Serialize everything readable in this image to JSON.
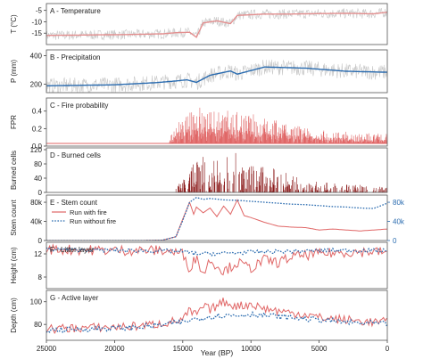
{
  "chart_data": {
    "type": "line",
    "x_axis": {
      "label": "Year (BP)",
      "range": [
        25000,
        0
      ],
      "reversed": true,
      "ticks": [
        25000,
        20000,
        15000,
        10000,
        5000,
        0
      ],
      "tick_labels": [
        "25000",
        "20000",
        "15000",
        "10000",
        "5000",
        "0"
      ]
    },
    "panels": [
      {
        "id": "A",
        "label": "A - Temperature",
        "ylabel": "T (°C)",
        "type": "line",
        "ylim": [
          -20,
          -2
        ],
        "yticks": [
          -15,
          -10,
          -5
        ],
        "series": [
          {
            "name": "Temperature (annual)",
            "role": "noise",
            "color": "#c9c9c9",
            "x": [
              25000,
              22000,
              19000,
              16500,
              15500,
              14500,
              14000,
              13500,
              12500,
              11500,
              11000,
              9000,
              7000,
              5000,
              3000,
              1000,
              0
            ],
            "y": [
              -16,
              -15.8,
              -15.6,
              -15.3,
              -14.8,
              -14.6,
              -16.8,
              -10.5,
              -9.6,
              -10.8,
              -7.2,
              -6.6,
              -6.6,
              -6.4,
              -6.3,
              -6.5,
              -5.8
            ],
            "spread": 2.2
          },
          {
            "name": "Temperature (smoothed)",
            "role": "smooth",
            "color": "#e38f8f",
            "x": [
              25000,
              22000,
              19000,
              16500,
              15500,
              14500,
              14000,
              13500,
              12500,
              11500,
              11000,
              9000,
              7000,
              5000,
              3000,
              1000,
              0
            ],
            "y": [
              -16,
              -15.8,
              -15.6,
              -15.3,
              -14.8,
              -14.6,
              -16.8,
              -10.5,
              -9.6,
              -10.8,
              -7.2,
              -6.6,
              -6.6,
              -6.4,
              -6.3,
              -6.5,
              -5.8
            ]
          }
        ]
      },
      {
        "id": "B",
        "label": "B - Precipitation",
        "ylabel": "P (mm)",
        "type": "line",
        "ylim": [
          140,
          440
        ],
        "yticks": [
          200,
          400
        ],
        "series": [
          {
            "name": "Precipitation (annual)",
            "role": "noise",
            "color": "#c9c9c9",
            "x": [
              25000,
              20000,
              17000,
              15500,
              14700,
              14000,
              13000,
              11500,
              11000,
              9000,
              6000,
              3000,
              0
            ],
            "y": [
              188,
              195,
              210,
              222,
              230,
              212,
              262,
              292,
              270,
              320,
              312,
              290,
              283
            ],
            "spread": 55
          },
          {
            "name": "Precipitation (smoothed)",
            "role": "smooth",
            "color": "#2b6cb0",
            "x": [
              25000,
              20000,
              17000,
              15500,
              14700,
              14000,
              13000,
              11500,
              11000,
              9000,
              6000,
              3000,
              0
            ],
            "y": [
              188,
              195,
              210,
              222,
              230,
              212,
              262,
              292,
              270,
              320,
              312,
              290,
              283
            ]
          }
        ]
      },
      {
        "id": "C",
        "label": "C - Fire probability",
        "ylabel": "FPR",
        "type": "bars",
        "ylim": [
          0,
          0.55
        ],
        "yticks": [
          0.0,
          0.2,
          0.4
        ],
        "tick_labels": [
          "0.0",
          "0.2",
          "0.4"
        ],
        "color": "#e06666",
        "baseline": 0.03,
        "envelope": {
          "x": [
            16000,
            15200,
            14000,
            12000,
            10000,
            8000,
            6000,
            4000,
            2000,
            0
          ],
          "y": [
            0.1,
            0.3,
            0.45,
            0.42,
            0.38,
            0.3,
            0.22,
            0.18,
            0.15,
            0.14
          ]
        }
      },
      {
        "id": "D",
        "label": "D - Burned cells",
        "ylabel": "Burned cells",
        "type": "bars",
        "ylim": [
          0,
          125
        ],
        "yticks": [
          0,
          40,
          80,
          120
        ],
        "color": "#8b1a1a",
        "envelope": {
          "x": [
            15500,
            14500,
            13500,
            12500,
            11500,
            10500,
            9500,
            8500,
            7500,
            6500,
            5000,
            3000,
            1000,
            0
          ],
          "y": [
            10,
            80,
            110,
            95,
            120,
            95,
            75,
            70,
            60,
            40,
            30,
            25,
            18,
            15
          ]
        }
      },
      {
        "id": "E",
        "label": "E - Stem count",
        "ylabel": "Stem count",
        "type": "line",
        "ylim": [
          0,
          95000
        ],
        "yticks": [
          0,
          40000,
          80000
        ],
        "tick_labels": [
          "0",
          "40k",
          "80k"
        ],
        "right_axis": {
          "ticks": [
            0,
            40000,
            80000
          ],
          "tick_labels": [
            "0",
            "40k",
            "80k"
          ],
          "color": "#2b6cb0"
        },
        "legend": {
          "position": "upper-left"
        },
        "series": [
          {
            "name": "Run with fire",
            "color": "#e06666",
            "dash": "solid",
            "x": [
              25000,
              18000,
              16500,
              15500,
              15000,
              14500,
              14200,
              14000,
              13500,
              13000,
              12500,
              12000,
              11500,
              11000,
              10500,
              10000,
              9000,
              8000,
              7000,
              6000,
              5000,
              4000,
              3000,
              2000,
              1000,
              0
            ],
            "y": [
              0,
              0,
              500,
              8000,
              45000,
              80000,
              55000,
              70000,
              58000,
              68000,
              50000,
              72000,
              55000,
              85000,
              52000,
              48000,
              38000,
              30000,
              28000,
              27000,
              22000,
              24000,
              22000,
              20000,
              22000,
              24000
            ]
          },
          {
            "name": "Run without fire",
            "color": "#2b6cb0",
            "dash": "dotted",
            "x": [
              25000,
              18000,
              16500,
              15500,
              15000,
              14500,
              14000,
              13500,
              13000,
              12000,
              11000,
              10000,
              9000,
              8000,
              7000,
              6000,
              5000,
              4000,
              3000,
              2000,
              1000,
              0
            ],
            "y": [
              0,
              0,
              500,
              8000,
              42000,
              80000,
              90000,
              86000,
              88000,
              85000,
              84000,
              82000,
              80000,
              78000,
              76000,
              75000,
              73000,
              71000,
              70000,
              68000,
              67000,
              78000
            ]
          }
        ]
      },
      {
        "id": "F",
        "label": "F - Litter layer",
        "ylabel": "Height (cm)",
        "type": "line",
        "ylim": [
          6,
          14
        ],
        "yticks": [
          8,
          12
        ],
        "series": [
          {
            "name": "Run with fire",
            "color": "#e06666",
            "x": [
              25000,
              20000,
              17000,
              16000,
              15000,
              14500,
              14000,
              13500,
              13000,
              12000,
              11000,
              10000,
              9000,
              8000,
              7000,
              6000,
              5000,
              3000,
              1000,
              0
            ],
            "y": [
              12.8,
              12.6,
              12.6,
              12.5,
              12.0,
              9.5,
              11.5,
              8.5,
              11.0,
              9.0,
              10.5,
              9.5,
              11.0,
              10.5,
              11.5,
              11.8,
              12.0,
              12.3,
              12.4,
              12.3
            ],
            "spread": 0.9
          },
          {
            "name": "Run without fire",
            "color": "#2b6cb0",
            "dash": "dotted",
            "x": [
              25000,
              20000,
              16000,
              15000,
              14000,
              12000,
              10000,
              8000,
              6000,
              4000,
              2000,
              0
            ],
            "y": [
              12.8,
              12.6,
              12.5,
              12.4,
              12.0,
              12.1,
              12.3,
              12.4,
              12.5,
              12.6,
              12.6,
              12.5
            ],
            "spread": 0.35
          }
        ]
      },
      {
        "id": "G",
        "label": "G - Active layer",
        "ylabel": "Depth (cm)",
        "type": "line",
        "ylim": [
          66,
          110
        ],
        "yticks": [
          80,
          100
        ],
        "series": [
          {
            "name": "Run with fire",
            "color": "#e06666",
            "x": [
              25000,
              22000,
              19000,
              17000,
              15000,
              14500,
              14000,
              13500,
              13000,
              12000,
              11000,
              10000,
              9000,
              8000,
              7000,
              6000,
              5000,
              4000,
              3000,
              2000,
              1000,
              0
            ],
            "y": [
              76,
              77,
              78,
              80,
              84,
              92,
              88,
              96,
              93,
              100,
              96,
              98,
              94,
              92,
              90,
              89,
              86,
              85,
              84,
              83,
              82,
              82
            ],
            "spread": 4
          },
          {
            "name": "Run without fire",
            "color": "#2b6cb0",
            "dash": "dotted",
            "x": [
              25000,
              22000,
              19000,
              17000,
              15000,
              14000,
              13000,
              12000,
              11000,
              10000,
              9000,
              8000,
              7000,
              6000,
              5000,
              4000,
              3000,
              2000,
              1000,
              0
            ],
            "y": [
              75,
              76,
              77,
              79,
              82,
              85,
              87,
              88,
              88,
              89,
              88,
              87,
              86,
              85,
              84,
              83,
              82,
              81,
              81,
              80
            ],
            "spread": 2.5
          }
        ]
      }
    ]
  }
}
